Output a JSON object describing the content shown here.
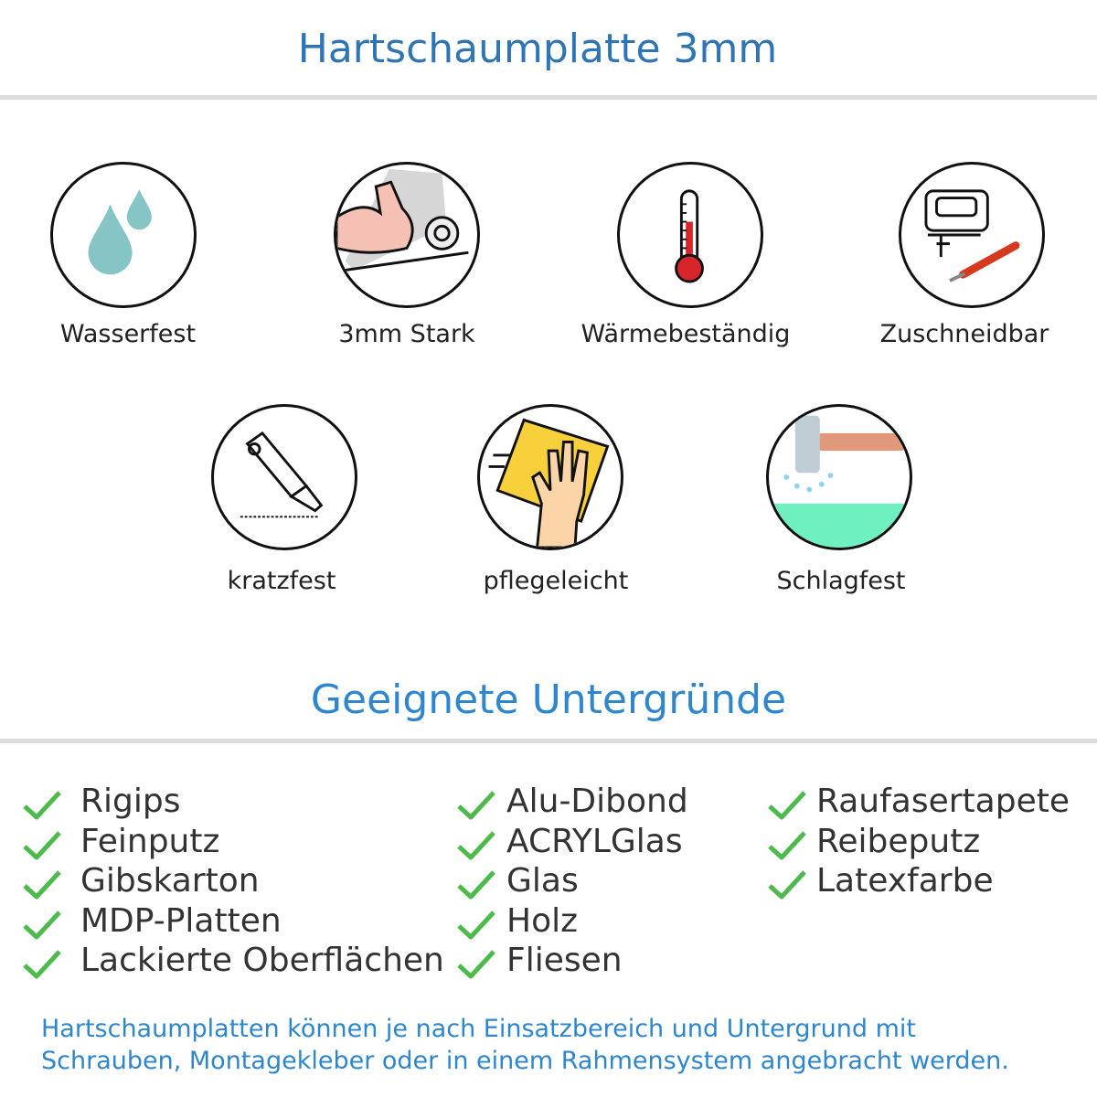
{
  "header": {
    "title": "Hartschaumplatte 3mm"
  },
  "features": [
    {
      "label": "Wasserfest",
      "icon": "water-drops-icon"
    },
    {
      "label": "3mm Stark",
      "icon": "strong-arm-icon"
    },
    {
      "label": "Wärmebeständig",
      "icon": "thermometer-icon"
    },
    {
      "label": "Zuschneidbar",
      "icon": "jigsaw-cutter-icon"
    },
    {
      "label": "kratzfest",
      "icon": "cutter-knife-icon"
    },
    {
      "label": "pflegeleicht",
      "icon": "hand-sponge-icon"
    },
    {
      "label": "Schlagfest",
      "icon": "hammer-icon"
    }
  ],
  "surfaces": {
    "title": "Geeignete Untergründe",
    "columns": [
      [
        "Rigips",
        "Feinputz",
        "Gibskarton",
        "MDP-Platten",
        "Lackierte Oberflächen"
      ],
      [
        "Alu-Dibond",
        "ACRYLGlas",
        "Glas",
        "Holz",
        "Fliesen"
      ],
      [
        "Raufasertapete",
        "Reibeputz",
        "Latexfarbe"
      ]
    ],
    "check_color": "#4cbb4c"
  },
  "footer": {
    "lines": [
      "Hartschaumplatten können je nach Einsatzbereich und Untergrund mit",
      "Schrauben, Montagekleber oder in einem Rahmensystem angebracht werden."
    ]
  },
  "colors": {
    "title": "#2f75b5",
    "accent": "#2e86cf"
  }
}
